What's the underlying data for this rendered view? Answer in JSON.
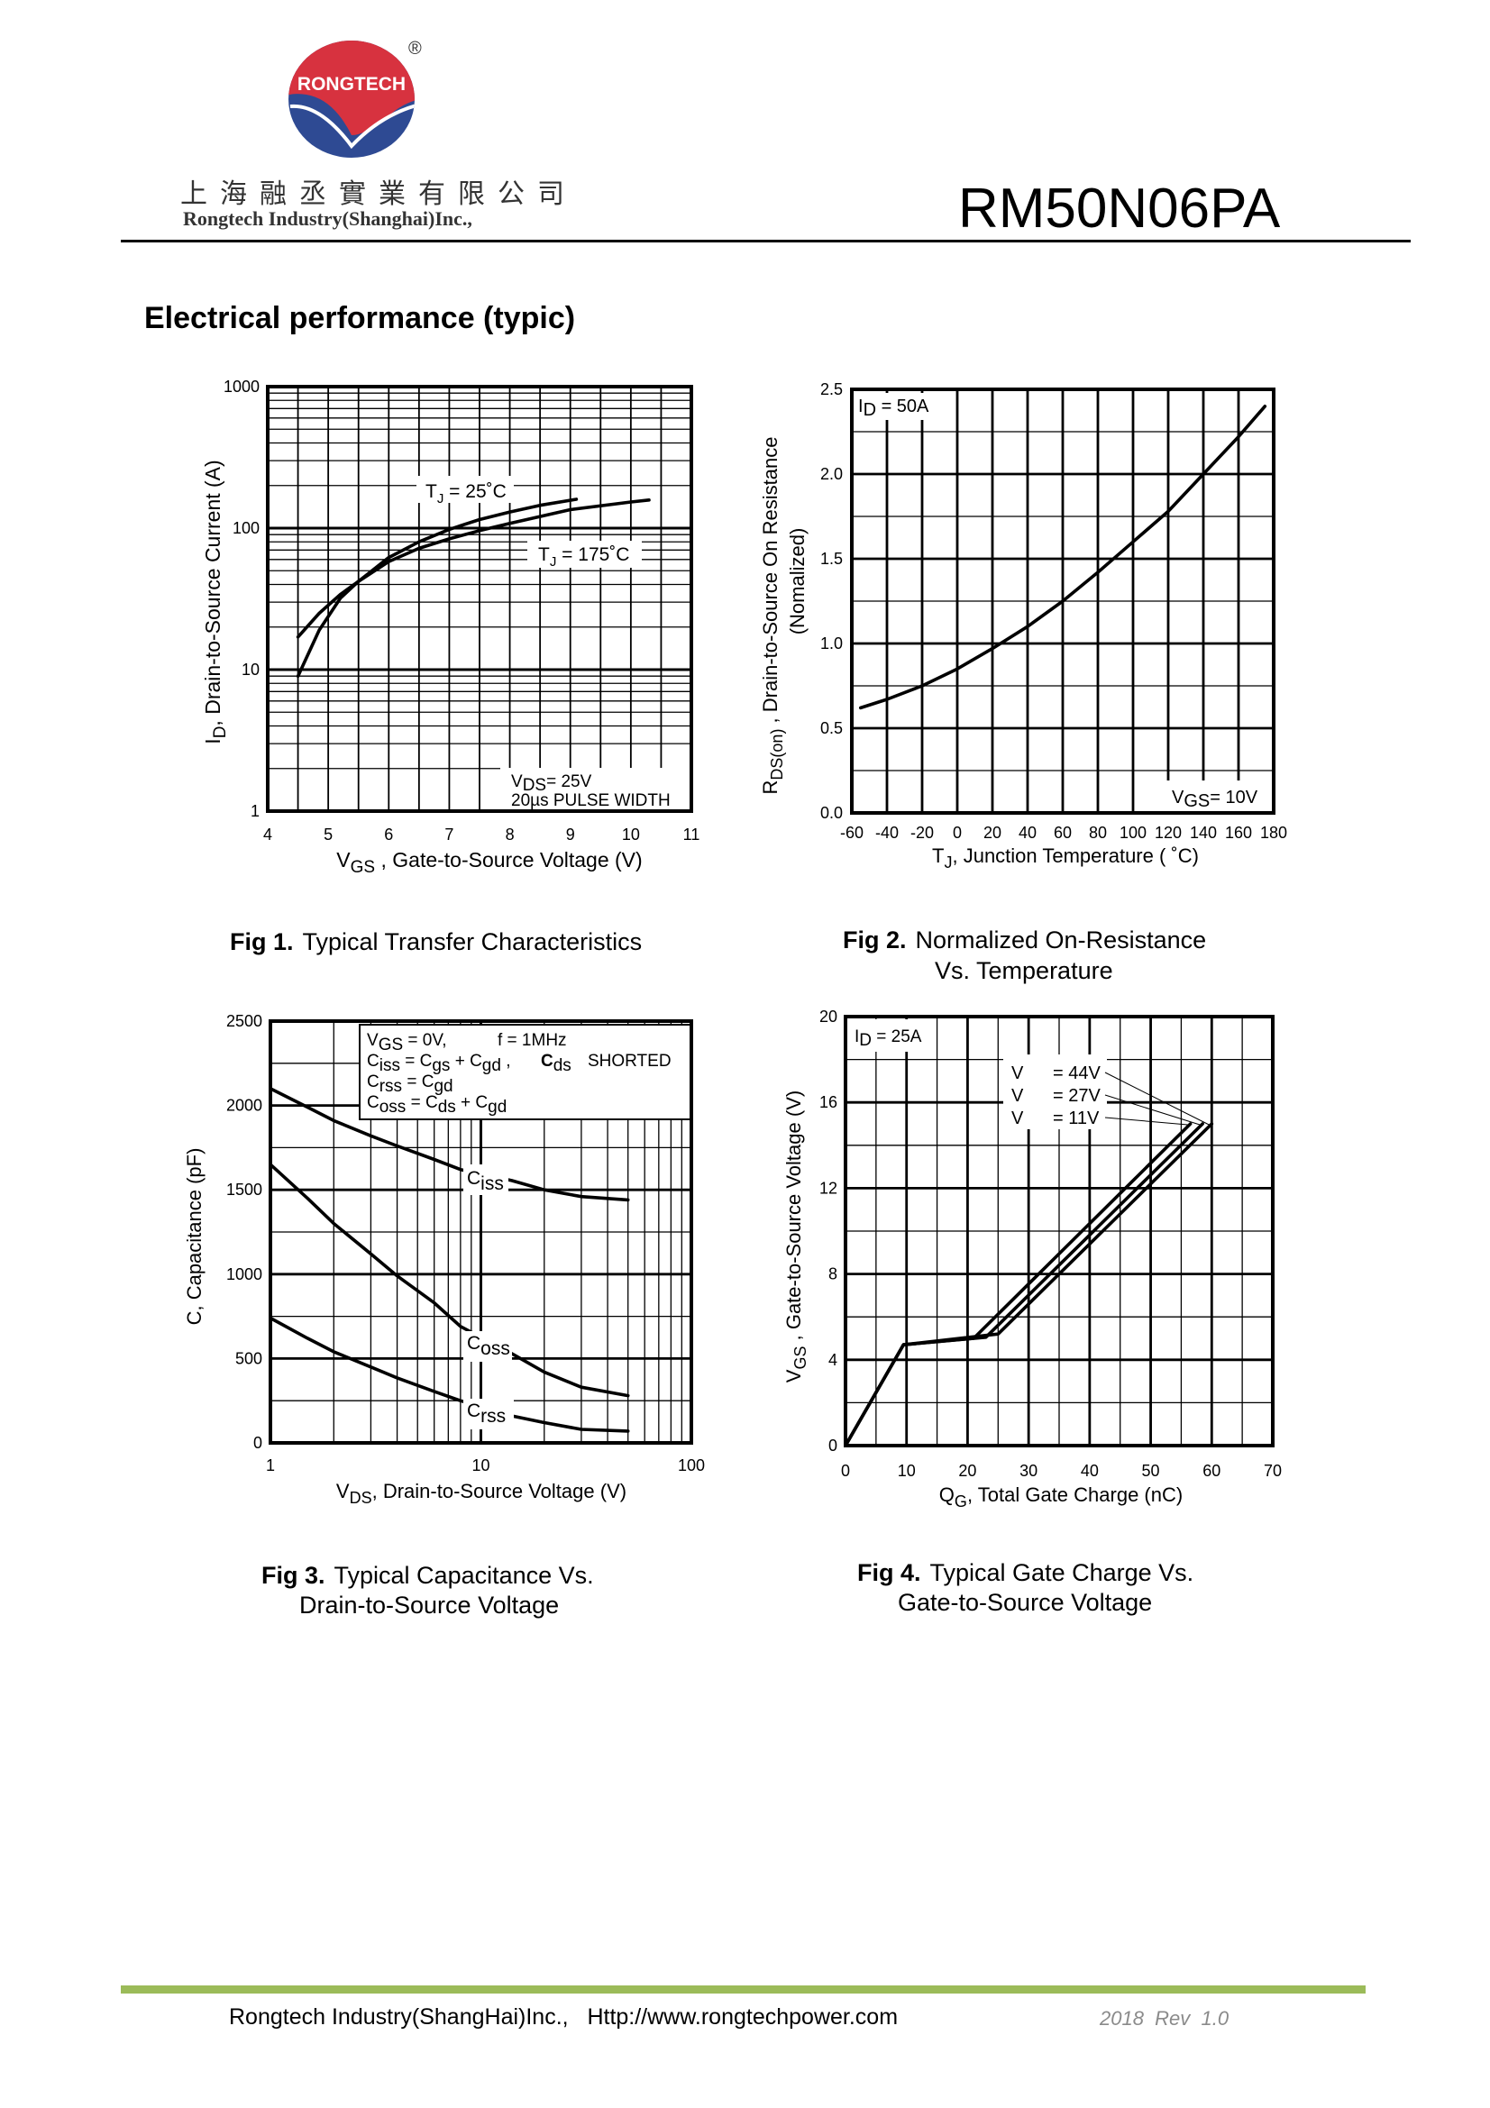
{
  "header": {
    "logo_text": "RONGTECH",
    "registered": "®",
    "company_cn": "上海融丞實業有限公司",
    "company_en": "Rongtech Industry(Shanghai)Inc.,",
    "part_number": "RM50N06PA"
  },
  "section_title": "Electrical performance (typic)",
  "colors": {
    "logo_red": "#d7323f",
    "logo_blue": "#2e4a93",
    "footer_bar": "#9bbb59",
    "revision_gray": "#8a8a8a"
  },
  "chart_data": [
    {
      "id": "fig1",
      "type": "line",
      "yscale": "log",
      "caption": {
        "fig": "Fig 1.",
        "lines": [
          "Typical Transfer Characteristics"
        ]
      },
      "xlabel": {
        "main": "V",
        "sub": "GS",
        "rest": " , Gate-to-Source Voltage (V)"
      },
      "ylabel": {
        "main": "I",
        "sub": "D",
        "rest": ",  Drain-to-Source Current (A)"
      },
      "xlim": [
        4,
        11
      ],
      "ylim": [
        1,
        1000
      ],
      "xticks": [
        4,
        5,
        6,
        7,
        8,
        9,
        10,
        11
      ],
      "xtick_labels": [
        "4",
        "5",
        "6",
        "7",
        "8",
        "9",
        "10",
        "11"
      ],
      "yticks": [
        1000,
        100,
        10,
        1
      ],
      "ytick_labels": [
        "1000",
        "100",
        "10",
        "1"
      ],
      "series": [
        {
          "name": "TJ = 25°C",
          "label": {
            "main": "T",
            "sub": "J",
            "rest": " = 25˚C"
          },
          "points": [
            [
              4.5,
              9
            ],
            [
              4.85,
              19
            ],
            [
              5.2,
              32
            ],
            [
              5.5,
              42
            ],
            [
              6,
              62
            ],
            [
              6.5,
              80
            ],
            [
              7,
              98
            ],
            [
              7.5,
              115
            ],
            [
              8,
              130
            ],
            [
              8.5,
              145
            ],
            [
              9.1,
              160
            ]
          ]
        },
        {
          "name": "TJ = 175°C",
          "label": {
            "main": "T",
            "sub": "J",
            "rest": " =  175˚C"
          },
          "points": [
            [
              4.5,
              17
            ],
            [
              4.85,
              25
            ],
            [
              5.2,
              34
            ],
            [
              5.5,
              42
            ],
            [
              6,
              58
            ],
            [
              6.5,
              72
            ],
            [
              7,
              84
            ],
            [
              7.5,
              96
            ],
            [
              8,
              108
            ],
            [
              9,
              135
            ],
            [
              10,
              153
            ],
            [
              10.3,
              158
            ]
          ]
        }
      ],
      "conditions": {
        "vds_main": "V",
        "vds_sub": "DS",
        "vds_rest": "= 25V",
        "pulse": "20µs PULSE WIDTH"
      }
    },
    {
      "id": "fig2",
      "type": "line",
      "caption": {
        "fig": "Fig 2.",
        "lines": [
          "Normalized On-Resistance",
          "Vs. Temperature"
        ]
      },
      "xlabel": {
        "main": "T",
        "sub": "J",
        "rest": ", Junction Temperature  ( ˚C)"
      },
      "ylabel": {
        "main": "R",
        "sub": "DS(on)",
        "rest": " ,  Drain-to-Source On Resistance",
        "line2": "(Nomalized)"
      },
      "xlim": [
        -60,
        180
      ],
      "ylim": [
        0,
        2.5
      ],
      "xticks": [
        -60,
        -40,
        -20,
        0,
        20,
        40,
        60,
        80,
        100,
        120,
        140,
        160,
        180
      ],
      "xtick_labels": [
        "-60",
        "-40",
        "-20",
        "0",
        "20",
        "40",
        "60",
        "80",
        "100",
        "120",
        "140",
        "160",
        "180"
      ],
      "yticks": [
        0,
        0.5,
        1,
        1.5,
        2,
        2.5
      ],
      "ytick_labels": [
        "0.0",
        "0.5",
        "1.0",
        "1.5",
        "2.0",
        "2.5"
      ],
      "series": [
        {
          "name": "RDS(on) normalized",
          "points": [
            [
              -55,
              0.62
            ],
            [
              -40,
              0.67
            ],
            [
              -20,
              0.75
            ],
            [
              0,
              0.85
            ],
            [
              20,
              0.97
            ],
            [
              40,
              1.1
            ],
            [
              60,
              1.25
            ],
            [
              80,
              1.42
            ],
            [
              100,
              1.6
            ],
            [
              120,
              1.78
            ],
            [
              140,
              2.0
            ],
            [
              160,
              2.22
            ],
            [
              175,
              2.4
            ]
          ]
        }
      ],
      "conditions": {
        "id_main": "I",
        "id_sub": "D",
        "id_rest": " = 50A",
        "vgs_main": "V",
        "vgs_sub": "GS",
        "vgs_rest": "= 10V"
      }
    },
    {
      "id": "fig3",
      "type": "line",
      "xscale": "log",
      "caption": {
        "fig": "Fig 3.",
        "lines": [
          "Typical Capacitance Vs.",
          "Drain-to-Source Voltage"
        ]
      },
      "xlabel": {
        "main": "V",
        "sub": "DS",
        "rest": ", Drain-to-Source Voltage (V)"
      },
      "ylabel": {
        "main": "C, Capacitance (pF)"
      },
      "xlim": [
        1,
        100
      ],
      "ylim": [
        0,
        2500
      ],
      "xticks": [
        1,
        10,
        100
      ],
      "xtick_labels": [
        "1",
        "10",
        "100"
      ],
      "yticks": [
        0,
        500,
        1000,
        1500,
        2000,
        2500
      ],
      "ytick_labels": [
        "0",
        "500",
        "1000",
        "1500",
        "2000",
        "2500"
      ],
      "series": [
        {
          "name": "Ciss",
          "label": {
            "main": "C",
            "sub": "iss"
          },
          "points": [
            [
              1,
              2100
            ],
            [
              1.5,
              1990
            ],
            [
              2,
              1910
            ],
            [
              3,
              1820
            ],
            [
              4,
              1760
            ],
            [
              6,
              1680
            ],
            [
              8,
              1620
            ],
            [
              14,
              1555
            ],
            [
              20,
              1500
            ],
            [
              30,
              1460
            ],
            [
              50,
              1440
            ]
          ]
        },
        {
          "name": "Coss",
          "label": {
            "main": "C",
            "sub": "oss"
          },
          "points": [
            [
              1,
              1650
            ],
            [
              1.5,
              1450
            ],
            [
              2,
              1300
            ],
            [
              3,
              1120
            ],
            [
              4,
              990
            ],
            [
              6,
              830
            ],
            [
              8,
              690
            ],
            [
              14,
              530
            ],
            [
              20,
              420
            ],
            [
              30,
              330
            ],
            [
              50,
              280
            ]
          ]
        },
        {
          "name": "Crss",
          "label": {
            "main": "C",
            "sub": "rss"
          },
          "points": [
            [
              1,
              740
            ],
            [
              1.5,
              620
            ],
            [
              2,
              540
            ],
            [
              3,
              450
            ],
            [
              4,
              385
            ],
            [
              6,
              305
            ],
            [
              8,
              250
            ],
            [
              14,
              160
            ],
            [
              20,
              120
            ],
            [
              30,
              80
            ],
            [
              50,
              70
            ]
          ]
        }
      ],
      "legend": {
        "l1": {
          "a": "V",
          "a_sub": "GS",
          "b": " = 0V,",
          "c": "f = 1MHz"
        },
        "l2": {
          "a": "C",
          "a_sub": "iss",
          "b": " = C",
          "b_sub": "gs",
          "c": " + C",
          "c_sub": "gd",
          "d": " ,",
          "e": "C",
          "e_sub": "ds",
          "f": "SHORTED"
        },
        "l3": {
          "a": "C",
          "a_sub": "rss",
          "b": " = C",
          "b_sub": "gd"
        },
        "l4": {
          "a": "C",
          "a_sub": "oss",
          "b": " = C",
          "b_sub": "ds",
          "c": " + C",
          "c_sub": "gd"
        }
      }
    },
    {
      "id": "fig4",
      "type": "line",
      "caption": {
        "fig": "Fig 4.",
        "lines": [
          "Typical Gate Charge Vs.",
          "Gate-to-Source Voltage"
        ]
      },
      "xlabel": {
        "main": "Q",
        "sub": "G",
        "rest": ", Total Gate Charge (nC)"
      },
      "ylabel": {
        "main": "V",
        "sub": "GS",
        "rest": " ,  Gate-to-Source Voltage (V)"
      },
      "xlim": [
        0,
        70
      ],
      "ylim": [
        0,
        20
      ],
      "xticks": [
        0,
        10,
        20,
        30,
        40,
        50,
        60,
        70
      ],
      "xtick_labels": [
        "0",
        "10",
        "20",
        "30",
        "40",
        "50",
        "60",
        "70"
      ],
      "yticks": [
        0,
        4,
        8,
        12,
        16,
        20
      ],
      "ytick_labels": [
        "0",
        "4",
        "8",
        "12",
        "16",
        "20"
      ],
      "series": [
        {
          "name": "VDS = 44V",
          "label": {
            "a": "V",
            "b": "= 44V"
          },
          "points": [
            [
              0,
              0
            ],
            [
              9.5,
              4.7
            ],
            [
              25,
              5.2
            ],
            [
              60,
              15
            ]
          ]
        },
        {
          "name": "VDS = 27V",
          "label": {
            "a": "V",
            "b": "= 27V"
          },
          "points": [
            [
              0,
              0
            ],
            [
              9.5,
              4.7
            ],
            [
              23,
              5.05
            ],
            [
              58.5,
              15
            ]
          ]
        },
        {
          "name": "VDS = 11V",
          "label": {
            "a": "V",
            "b": "= 11V"
          },
          "points": [
            [
              0,
              0
            ],
            [
              9.5,
              4.7
            ],
            [
              21,
              5.0
            ],
            [
              56.5,
              15
            ]
          ]
        }
      ],
      "conditions": {
        "id_main": "I",
        "id_sub": "D",
        "id_rest": " = 25A"
      }
    }
  ],
  "footer": {
    "company": "Rongtech Industry(ShangHai)Inc.,",
    "url": "Http://www.rongtechpower.com",
    "revision": "2018  Rev  1.0"
  }
}
